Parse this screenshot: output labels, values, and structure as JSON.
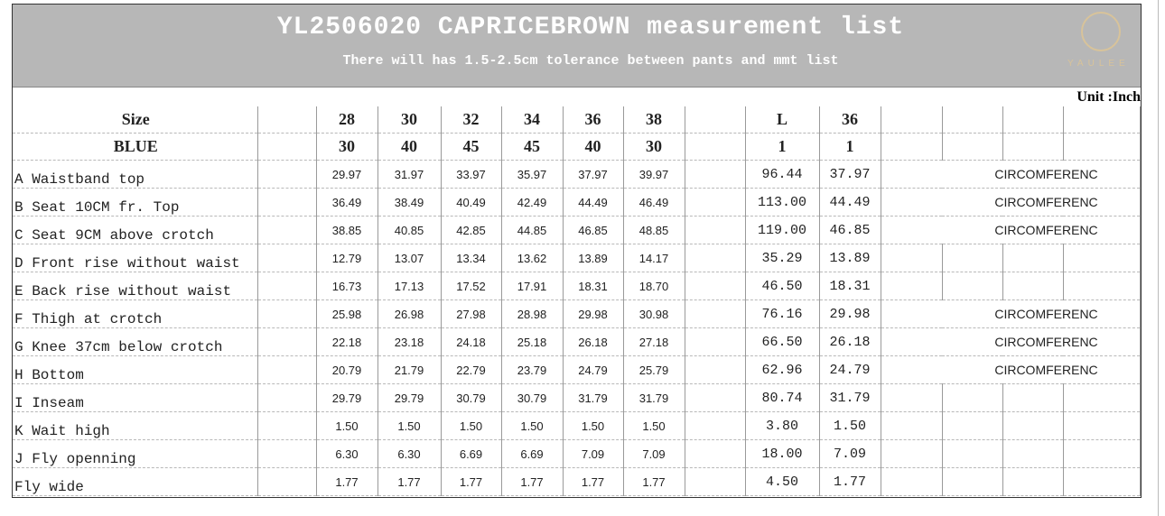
{
  "header": {
    "title": "YL2506020 CAPRICEBROWN measurement list",
    "subtitle": "There will has 1.5-2.5cm tolerance between pants and mmt list",
    "logo": "YAULEE"
  },
  "unit": "Unit :Inch",
  "table": {
    "head_rows": [
      {
        "label": "Size",
        "sizes": [
          "28",
          "30",
          "32",
          "34",
          "36",
          "38"
        ],
        "extra": [
          "L",
          "36"
        ]
      },
      {
        "label": "BLUE",
        "sizes": [
          "30",
          "40",
          "45",
          "45",
          "40",
          "30"
        ],
        "extra": [
          "1",
          "1"
        ]
      }
    ],
    "rows": [
      {
        "label": "A Waistband top",
        "values": [
          "29.97",
          "31.97",
          "33.97",
          "35.97",
          "37.97",
          "39.97"
        ],
        "extra": [
          "96.44",
          "37.97"
        ],
        "note": "CIRCOMFERENC"
      },
      {
        "label": "B Seat 10CM fr. Top",
        "values": [
          "36.49",
          "38.49",
          "40.49",
          "42.49",
          "44.49",
          "46.49"
        ],
        "extra": [
          "113.00",
          "44.49"
        ],
        "note": "CIRCOMFERENC"
      },
      {
        "label": "C Seat  9CM above crotch",
        "values": [
          "38.85",
          "40.85",
          "42.85",
          "44.85",
          "46.85",
          "48.85"
        ],
        "extra": [
          "119.00",
          "46.85"
        ],
        "note": "CIRCOMFERENC"
      },
      {
        "label": "D Front rise without waist",
        "values": [
          "12.79",
          "13.07",
          "13.34",
          "13.62",
          "13.89",
          "14.17"
        ],
        "extra": [
          "35.29",
          "13.89"
        ]
      },
      {
        "label": "E Back rise without waist",
        "values": [
          "16.73",
          "17.13",
          "17.52",
          "17.91",
          "18.31",
          "18.70"
        ],
        "extra": [
          "46.50",
          "18.31"
        ]
      },
      {
        "label": "F Thigh at crotch",
        "values": [
          "25.98",
          "26.98",
          "27.98",
          "28.98",
          "29.98",
          "30.98"
        ],
        "extra": [
          "76.16",
          "29.98"
        ],
        "note": "CIRCOMFERENC"
      },
      {
        "label": "G Knee 37cm below crotch",
        "values": [
          "22.18",
          "23.18",
          "24.18",
          "25.18",
          "26.18",
          "27.18"
        ],
        "extra": [
          "66.50",
          "26.18"
        ],
        "note": "CIRCOMFERENC"
      },
      {
        "label": "H Bottom",
        "values": [
          "20.79",
          "21.79",
          "22.79",
          "23.79",
          "24.79",
          "25.79"
        ],
        "extra": [
          "62.96",
          "24.79"
        ],
        "note": "CIRCOMFERENC"
      },
      {
        "label": "I Inseam",
        "values": [
          "29.79",
          "29.79",
          "30.79",
          "30.79",
          "31.79",
          "31.79"
        ],
        "extra": [
          "80.74",
          "31.79"
        ]
      },
      {
        "label": "K Wait high",
        "values": [
          "1.50",
          "1.50",
          "1.50",
          "1.50",
          "1.50",
          "1.50"
        ],
        "extra": [
          "3.80",
          "1.50"
        ]
      },
      {
        "label": "J Fly openning",
        "values": [
          "6.30",
          "6.30",
          "6.69",
          "6.69",
          "7.09",
          "7.09"
        ],
        "extra": [
          "18.00",
          "7.09"
        ]
      },
      {
        "label": "Fly wide",
        "values": [
          "1.77",
          "1.77",
          "1.77",
          "1.77",
          "1.77",
          "1.77"
        ],
        "extra": [
          "4.50",
          "1.77"
        ]
      }
    ]
  }
}
